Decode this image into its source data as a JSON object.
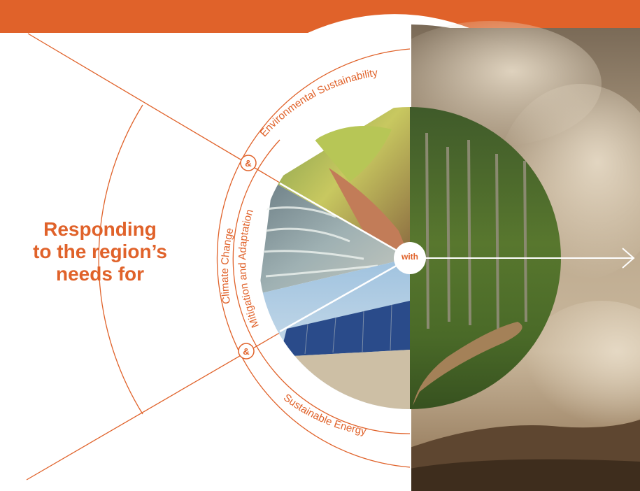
{
  "headline": {
    "line1": "Responding",
    "line2": "to the region’s",
    "line3": "needs for"
  },
  "ring_labels": {
    "environmental": "Environmental Sustainability",
    "climate": "Climate Change",
    "mitigation": "Mitigation and Adaptation",
    "energy": "Sustainable Energy"
  },
  "connectors": {
    "ampersand": "&"
  },
  "center_label": "with",
  "colors": {
    "accent": "#e0622a",
    "ring_line": "#e0622a",
    "background": "#ffffff"
  },
  "images": [
    {
      "name": "hands-holding-seedling-photo"
    },
    {
      "name": "ocean-waves-shoreline-photo"
    },
    {
      "name": "solar-panels-array-photo"
    },
    {
      "name": "forest-dirt-path-photo"
    },
    {
      "name": "clouds-sky-hills-photo"
    }
  ]
}
